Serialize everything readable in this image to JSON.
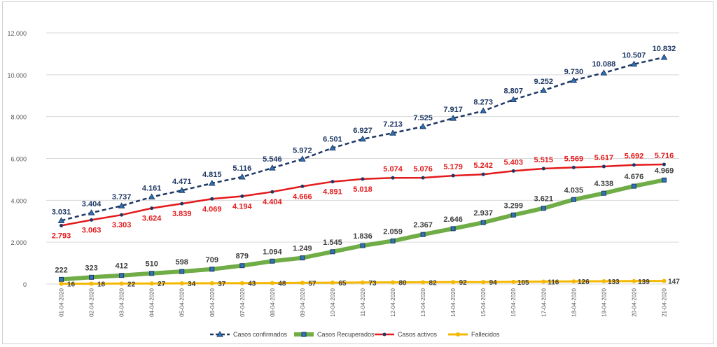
{
  "chart_data": {
    "type": "line",
    "categories": [
      "01-04-2020",
      "02-04-2020",
      "03-04-2020",
      "04-04-2020",
      "05-04-2020",
      "06-04-2020",
      "07-04-2020",
      "08-04-2020",
      "09-04-2020",
      "10-04-2020",
      "11-04-2020",
      "12-04-2020",
      "13-04-2020",
      "14-04-2020",
      "15-04-2020",
      "16-04-2020",
      "17-04-2020",
      "18-04-2020",
      "19-04-2020",
      "20-04-2020",
      "21-04-2020"
    ],
    "ylim": [
      0,
      12000
    ],
    "yticks": [
      0,
      2000,
      4000,
      6000,
      8000,
      10000,
      12000
    ],
    "ytick_labels": [
      "0",
      "2.000",
      "4.000",
      "6.000",
      "8.000",
      "10.000",
      "12.000"
    ],
    "grid": true,
    "legend_position": "bottom",
    "series": [
      {
        "name": "Casos confirmados",
        "color": "#1f3864",
        "style": "dashed",
        "values": [
          3031,
          3404,
          3737,
          4161,
          4471,
          4815,
          5116,
          5546,
          5972,
          6501,
          6927,
          7213,
          7525,
          7917,
          8273,
          8807,
          9252,
          9730,
          10088,
          10507,
          10832
        ],
        "labels": [
          "3.031",
          "3.404",
          "3.737",
          "4.161",
          "4.471",
          "4.815",
          "5.116",
          "5.546",
          "5.972",
          "6.501",
          "6.927",
          "7.213",
          "7.525",
          "7.917",
          "8.273",
          "8.807",
          "9.252",
          "9.730",
          "10.088",
          "10.507",
          "10.832"
        ]
      },
      {
        "name": "Casos Recuperados",
        "color": "#70ad47",
        "style": "thick",
        "values": [
          222,
          323,
          412,
          510,
          598,
          709,
          879,
          1094,
          1249,
          1545,
          1836,
          2059,
          2367,
          2646,
          2937,
          3299,
          3621,
          4035,
          4338,
          4676,
          4969
        ],
        "labels": [
          "222",
          "323",
          "412",
          "510",
          "598",
          "709",
          "879",
          "1.094",
          "1.249",
          "1.545",
          "1.836",
          "2.059",
          "2.367",
          "2.646",
          "2.937",
          "3.299",
          "3.621",
          "4.035",
          "4.338",
          "4.676",
          "4.969"
        ]
      },
      {
        "name": "Casos activos",
        "color": "#e31a1c",
        "style": "solid",
        "values": [
          2793,
          3063,
          3303,
          3624,
          3839,
          4069,
          4194,
          4404,
          4666,
          4891,
          5018,
          5074,
          5076,
          5179,
          5242,
          5403,
          5515,
          5569,
          5617,
          5692,
          5716
        ],
        "labels": [
          "2.793",
          "3.063",
          "3.303",
          "3.624",
          "3.839",
          "4.069",
          "4.194",
          "4.404",
          "4.666",
          "4.891",
          "5.018",
          "5.074",
          "5.076",
          "5.179",
          "5.242",
          "5.403",
          "5.515",
          "5.569",
          "5.617",
          "5.692",
          "5.716"
        ]
      },
      {
        "name": "Fallecidos",
        "color": "#f5b800",
        "style": "solid",
        "values": [
          16,
          18,
          22,
          27,
          34,
          37,
          43,
          48,
          57,
          65,
          73,
          80,
          82,
          92,
          94,
          105,
          116,
          126,
          133,
          139,
          147
        ],
        "labels": [
          "16",
          "18",
          "22",
          "27",
          "34",
          "37",
          "43",
          "48",
          "57",
          "65",
          "73",
          "80",
          "82",
          "92",
          "94",
          "105",
          "116",
          "126",
          "133",
          "139",
          "147"
        ]
      }
    ]
  }
}
